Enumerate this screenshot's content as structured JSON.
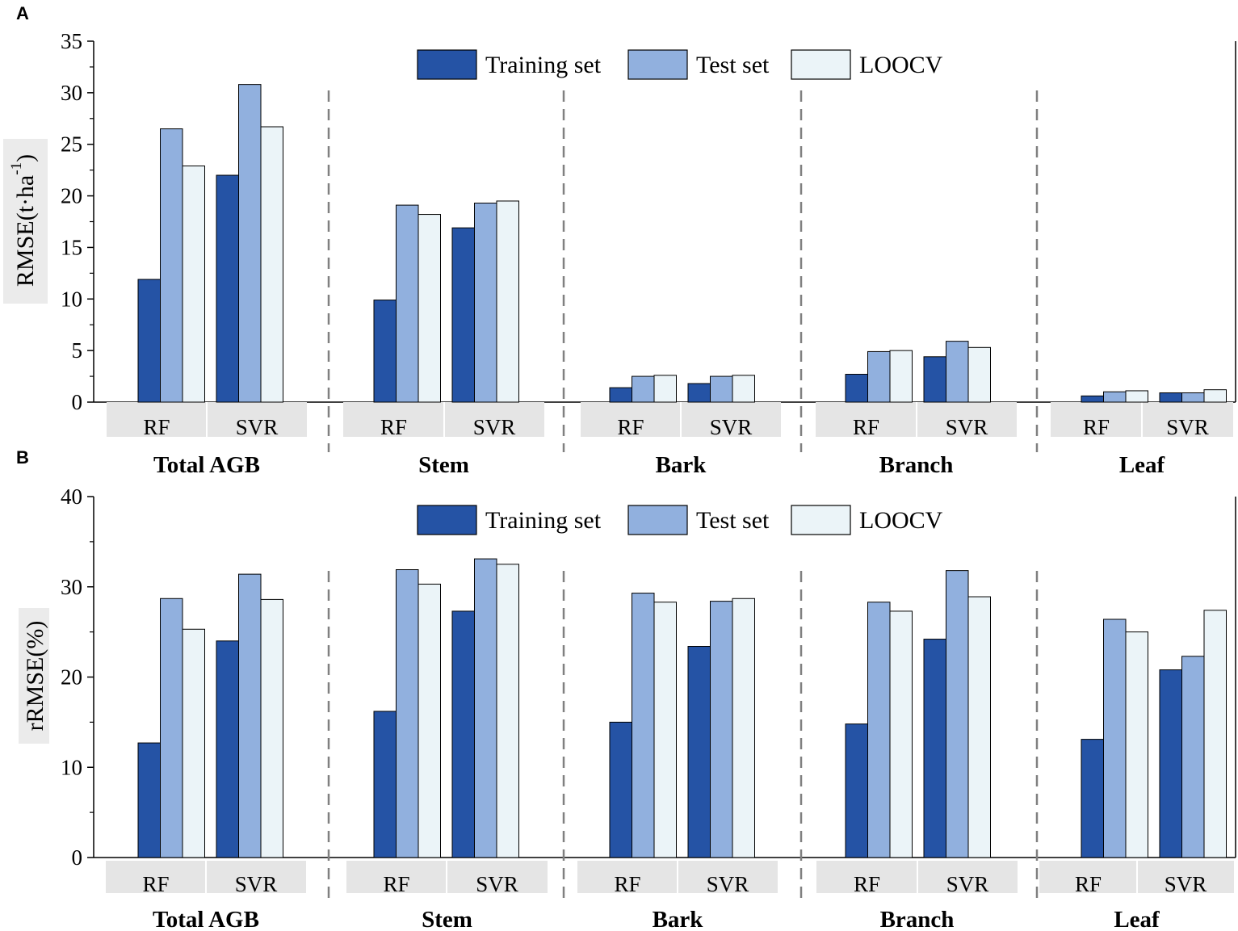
{
  "colors": {
    "training": "#2553a5",
    "test": "#91b0de",
    "loocv": "#ebf4f8",
    "category_band": "#e5e5e5",
    "ylabel_band": "#ebebeb",
    "separator": "#808080"
  },
  "legend": {
    "training": "Training set",
    "test": "Test set",
    "loocv": "LOOCV"
  },
  "chart_data": [
    {
      "panel": "A",
      "type": "bar",
      "ylabel": "RMSE(t·ha",
      "ylabel_sup": "-1",
      "ylabel_close": ")",
      "ylim": [
        0,
        35
      ],
      "yticks": [
        0,
        5,
        10,
        15,
        20,
        25,
        30,
        35
      ],
      "groups": [
        "Total AGB",
        "Stem",
        "Bark",
        "Branch",
        "Leaf"
      ],
      "methods": [
        "RF",
        "SVR"
      ],
      "series": [
        {
          "name": "Training set",
          "values": [
            [
              11.9,
              22.0
            ],
            [
              9.9,
              16.9
            ],
            [
              1.4,
              1.8
            ],
            [
              2.7,
              4.4
            ],
            [
              0.6,
              0.9
            ]
          ]
        },
        {
          "name": "Test set",
          "values": [
            [
              26.5,
              30.8
            ],
            [
              19.1,
              19.3
            ],
            [
              2.5,
              2.5
            ],
            [
              4.9,
              5.9
            ],
            [
              1.0,
              0.9
            ]
          ]
        },
        {
          "name": "LOOCV",
          "values": [
            [
              22.9,
              26.7
            ],
            [
              18.2,
              19.5
            ],
            [
              2.6,
              2.6
            ],
            [
              5.0,
              5.3
            ],
            [
              1.1,
              1.2
            ]
          ]
        }
      ]
    },
    {
      "panel": "B",
      "type": "bar",
      "ylabel": "rRMSE(%)",
      "ylim": [
        0,
        40
      ],
      "yticks": [
        0,
        10,
        20,
        30,
        40
      ],
      "groups": [
        "Total AGB",
        "Stem",
        "Bark",
        "Branch",
        "Leaf"
      ],
      "methods": [
        "RF",
        "SVR"
      ],
      "series": [
        {
          "name": "Training set",
          "values": [
            [
              12.7,
              24.0
            ],
            [
              16.2,
              27.3
            ],
            [
              15.0,
              23.4
            ],
            [
              14.8,
              24.2
            ],
            [
              13.1,
              20.8
            ]
          ]
        },
        {
          "name": "Test set",
          "values": [
            [
              28.7,
              31.4
            ],
            [
              31.9,
              33.1
            ],
            [
              29.3,
              28.4
            ],
            [
              28.3,
              31.8
            ],
            [
              26.4,
              22.3
            ]
          ]
        },
        {
          "name": "LOOCV",
          "values": [
            [
              25.3,
              28.6
            ],
            [
              30.3,
              32.5
            ],
            [
              28.3,
              28.7
            ],
            [
              27.3,
              28.9
            ],
            [
              25.0,
              27.4
            ]
          ]
        }
      ]
    }
  ]
}
